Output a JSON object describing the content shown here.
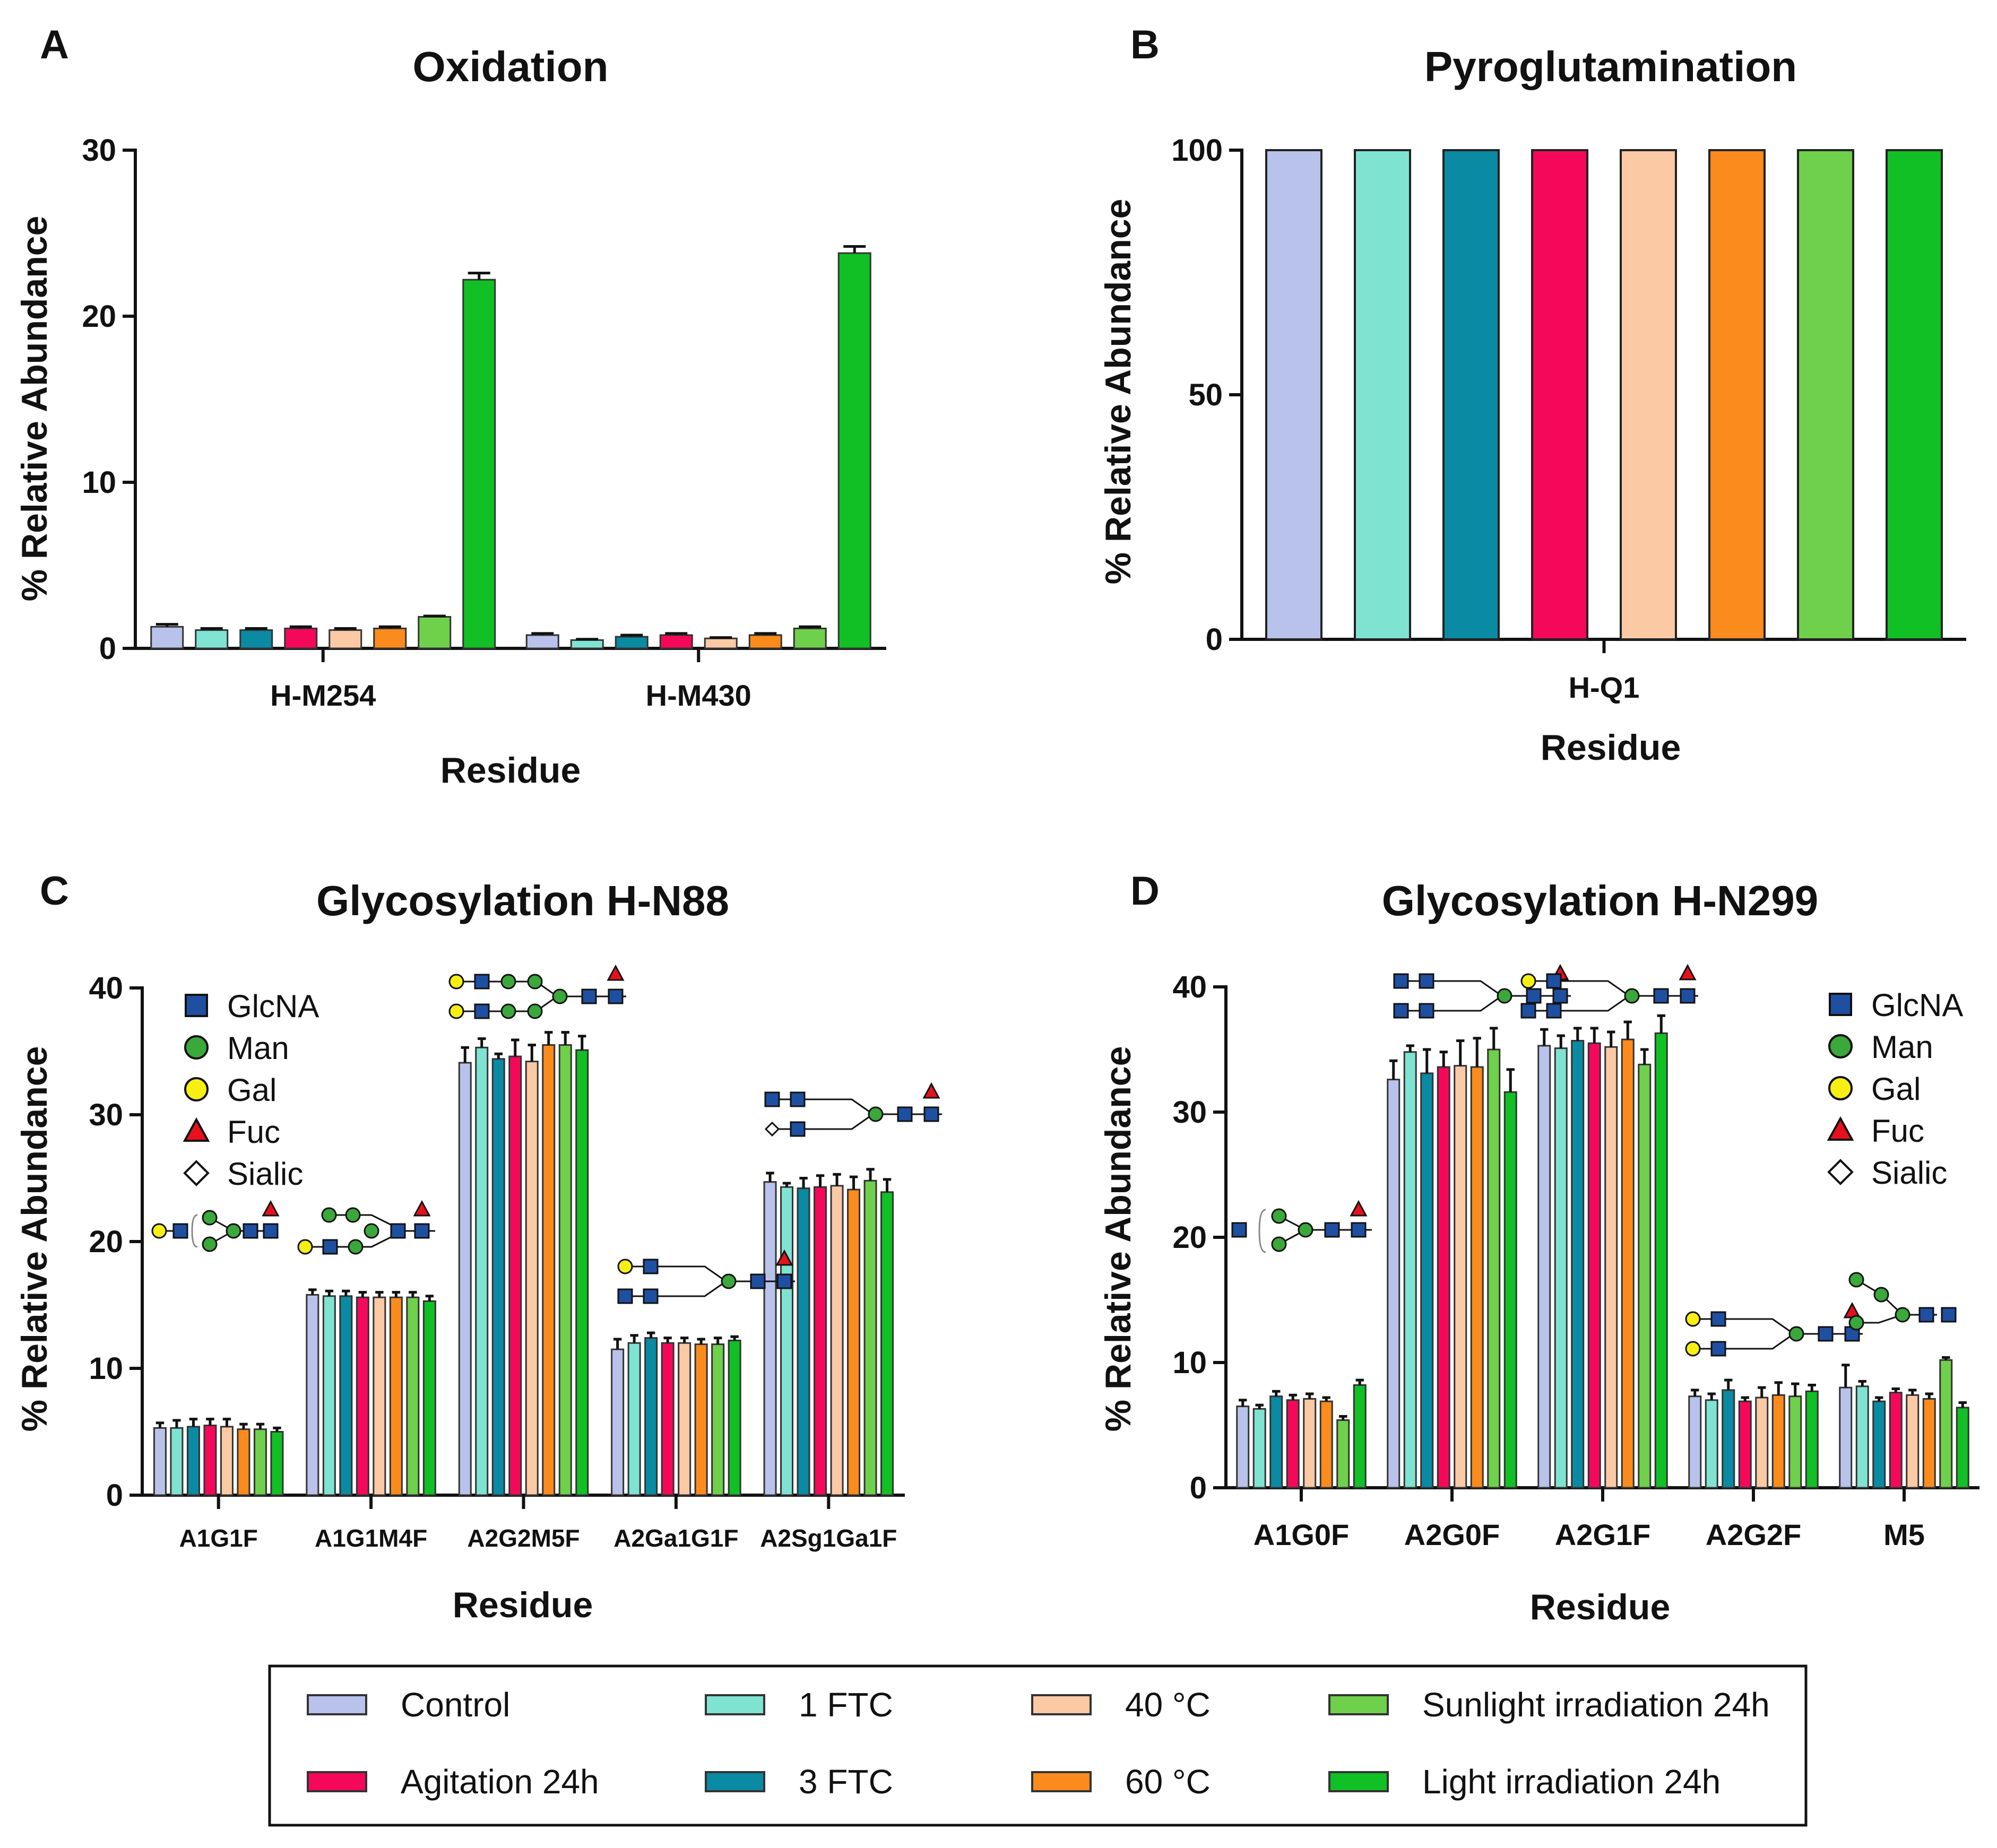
{
  "legend": {
    "entries": [
      {
        "label": "Control",
        "color": "#b8c2ea"
      },
      {
        "label": "1 FTC",
        "color": "#7fe3d2"
      },
      {
        "label": "40 °C",
        "color": "#fbc9a4"
      },
      {
        "label": "Sunlight irradiation 24h",
        "color": "#6fd04b"
      },
      {
        "label": "Agitation 24h",
        "color": "#f5085a"
      },
      {
        "label": "3 FTC",
        "color": "#0a8aa3"
      },
      {
        "label": "60 °C",
        "color": "#fb8b1d"
      },
      {
        "label": "Light irradiation 24h",
        "color": "#10c024"
      }
    ]
  },
  "glycan_key": {
    "items": [
      {
        "label": "GlcNA",
        "icon": "square",
        "color": "#1f4fa0"
      },
      {
        "label": "Man",
        "icon": "circle",
        "color": "#3aa83a"
      },
      {
        "label": "Gal",
        "icon": "circle",
        "color": "#f7ef14"
      },
      {
        "label": "Fuc",
        "icon": "triangle",
        "color": "#e8101c"
      },
      {
        "label": "Sialic",
        "icon": "diamond",
        "color": "#ffffff"
      }
    ]
  },
  "chart_data": [
    {
      "panel": "A",
      "type": "bar",
      "title": "Oxidation",
      "xlabel": "Residue",
      "ylabel": "% Relative Abundance",
      "ylim": [
        0,
        30
      ],
      "yticks": [
        "0",
        "10",
        "20",
        "30"
      ],
      "categories": [
        "H-M254",
        "H-M430"
      ],
      "series": [
        {
          "name": "Control",
          "values": [
            1.3,
            0.8
          ],
          "errors": [
            0.15,
            0.1
          ]
        },
        {
          "name": "1 FTC",
          "values": [
            1.1,
            0.5
          ],
          "errors": [
            0.1,
            0.05
          ]
        },
        {
          "name": "3 FTC",
          "values": [
            1.1,
            0.7
          ],
          "errors": [
            0.1,
            0.1
          ]
        },
        {
          "name": "Agitation 24h",
          "values": [
            1.2,
            0.8
          ],
          "errors": [
            0.1,
            0.1
          ]
        },
        {
          "name": "40 °C",
          "values": [
            1.1,
            0.6
          ],
          "errors": [
            0.1,
            0.05
          ]
        },
        {
          "name": "60 °C",
          "values": [
            1.2,
            0.8
          ],
          "errors": [
            0.1,
            0.1
          ]
        },
        {
          "name": "Sunlight irradiation 24h",
          "values": [
            1.9,
            1.2
          ],
          "errors": [
            0.05,
            0.1
          ]
        },
        {
          "name": "Light irradiation 24h",
          "values": [
            22.2,
            23.8
          ],
          "errors": [
            0.4,
            0.4
          ]
        }
      ]
    },
    {
      "panel": "B",
      "type": "bar",
      "title": "Pyroglutamination",
      "xlabel": "Residue",
      "ylabel": "% Relative Abundance",
      "ylim": [
        0,
        100
      ],
      "yticks": [
        "0",
        "50",
        "100"
      ],
      "categories": [
        "H-Q1"
      ],
      "series": [
        {
          "name": "Control",
          "values": [
            100
          ]
        },
        {
          "name": "1 FTC",
          "values": [
            100
          ]
        },
        {
          "name": "3 FTC",
          "values": [
            100
          ]
        },
        {
          "name": "Agitation 24h",
          "values": [
            100
          ]
        },
        {
          "name": "40 °C",
          "values": [
            100
          ]
        },
        {
          "name": "60 °C",
          "values": [
            100
          ]
        },
        {
          "name": "Sunlight irradiation 24h",
          "values": [
            100
          ]
        },
        {
          "name": "Light irradiation 24h",
          "values": [
            100
          ]
        }
      ]
    },
    {
      "panel": "C",
      "type": "bar",
      "title": "Glycosylation H-N88",
      "xlabel": "Residue",
      "ylabel": "% Relative Abundance",
      "ylim": [
        0,
        40
      ],
      "yticks": [
        "0",
        "10",
        "20",
        "30",
        "40"
      ],
      "categories": [
        "A1G1F",
        "A1G1M4F",
        "A2G2M5F",
        "A2Ga1G1F",
        "A2Sg1Ga1F"
      ],
      "series": [
        {
          "name": "Control",
          "values": [
            5.3,
            15.8,
            34.1,
            11.5,
            24.7
          ],
          "errors": [
            0.4,
            0.4,
            1.2,
            0.8,
            0.7
          ]
        },
        {
          "name": "1 FTC",
          "values": [
            5.3,
            15.7,
            35.3,
            12.0,
            24.3
          ],
          "errors": [
            0.6,
            0.4,
            0.7,
            0.6,
            0.3
          ]
        },
        {
          "name": "3 FTC",
          "values": [
            5.4,
            15.7,
            34.4,
            12.4,
            24.2
          ],
          "errors": [
            0.6,
            0.4,
            0.4,
            0.4,
            0.8
          ]
        },
        {
          "name": "Agitation 24h",
          "values": [
            5.5,
            15.6,
            34.6,
            12.0,
            24.3
          ],
          "errors": [
            0.5,
            0.4,
            1.3,
            0.4,
            0.9
          ]
        },
        {
          "name": "40 °C",
          "values": [
            5.4,
            15.6,
            34.2,
            12.0,
            24.4
          ],
          "errors": [
            0.6,
            0.4,
            1.3,
            0.4,
            0.9
          ]
        },
        {
          "name": "60 °C",
          "values": [
            5.2,
            15.6,
            35.5,
            11.9,
            24.1
          ],
          "errors": [
            0.4,
            0.4,
            1.0,
            0.4,
            1.0
          ]
        },
        {
          "name": "Sunlight irradiation 24h",
          "values": [
            5.2,
            15.6,
            35.5,
            11.9,
            24.8
          ],
          "errors": [
            0.4,
            0.4,
            1.0,
            0.5,
            0.9
          ]
        },
        {
          "name": "Light irradiation 24h",
          "values": [
            5.0,
            15.3,
            35.1,
            12.2,
            23.9
          ],
          "errors": [
            0.3,
            0.4,
            1.1,
            0.3,
            1.0
          ]
        }
      ]
    },
    {
      "panel": "D",
      "type": "bar",
      "title": "Glycosylation H-N299",
      "xlabel": "Residue",
      "ylabel": "% Relative Abundance",
      "ylim": [
        0,
        40
      ],
      "yticks": [
        "0",
        "10",
        "20",
        "30",
        "40"
      ],
      "categories": [
        "A1G0F",
        "A2G0F",
        "A2G1F",
        "A2G2F",
        "M5"
      ],
      "series": [
        {
          "name": "Control",
          "values": [
            6.5,
            32.6,
            35.3,
            7.3,
            8.0
          ],
          "errors": [
            0.5,
            1.5,
            1.3,
            0.5,
            1.8
          ]
        },
        {
          "name": "1 FTC",
          "values": [
            6.3,
            34.8,
            35.1,
            7.0,
            8.1
          ],
          "errors": [
            0.3,
            0.5,
            1.0,
            0.5,
            0.4
          ]
        },
        {
          "name": "3 FTC",
          "values": [
            7.3,
            33.1,
            35.7,
            7.8,
            6.9
          ],
          "errors": [
            0.4,
            1.9,
            1.0,
            0.8,
            0.3
          ]
        },
        {
          "name": "Agitation 24h",
          "values": [
            7.0,
            33.6,
            35.5,
            6.9,
            7.6
          ],
          "errors": [
            0.4,
            1.2,
            1.2,
            0.3,
            0.3
          ]
        },
        {
          "name": "40 °C",
          "values": [
            7.1,
            33.7,
            35.2,
            7.2,
            7.4
          ],
          "errors": [
            0.4,
            2.0,
            1.2,
            0.8,
            0.4
          ]
        },
        {
          "name": "60 °C",
          "values": [
            6.9,
            33.6,
            35.8,
            7.4,
            7.1
          ],
          "errors": [
            0.3,
            2.3,
            1.4,
            1.0,
            0.4
          ]
        },
        {
          "name": "Sunlight irradiation 24h",
          "values": [
            5.4,
            35.0,
            33.8,
            7.3,
            10.2
          ],
          "errors": [
            0.3,
            1.7,
            1.2,
            1.0,
            0.2
          ]
        },
        {
          "name": "Light irradiation 24h",
          "values": [
            8.2,
            31.6,
            36.3,
            7.7,
            6.4
          ],
          "errors": [
            0.4,
            1.8,
            1.4,
            0.5,
            0.4
          ]
        }
      ]
    }
  ]
}
